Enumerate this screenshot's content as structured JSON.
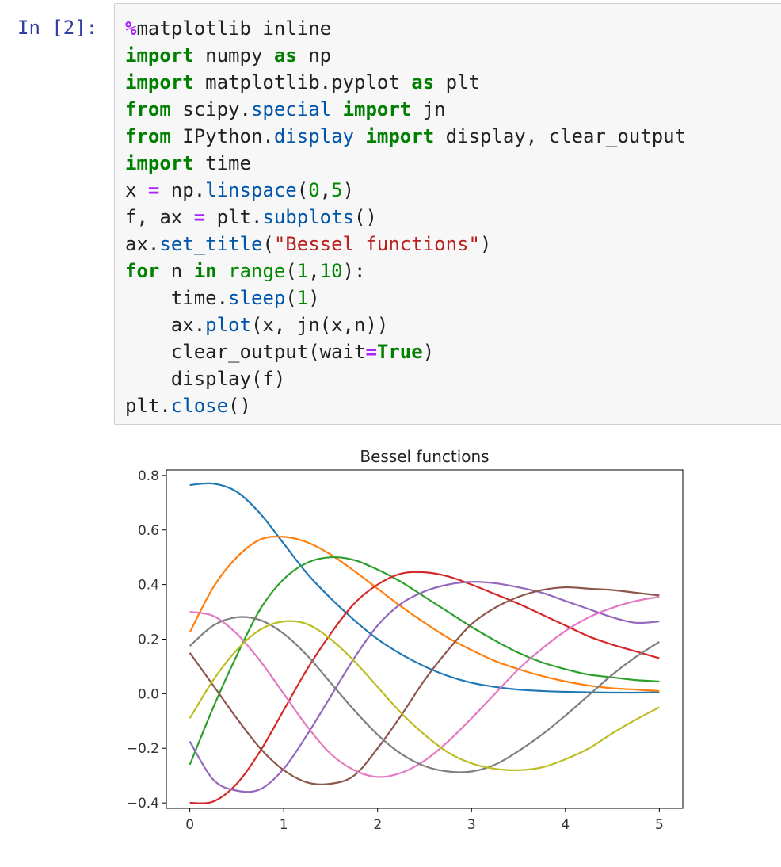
{
  "cell": {
    "prompt": "In [2]:",
    "code_lines": [
      [
        [
          "op",
          "%"
        ],
        [
          "plain",
          "matplotlib inline"
        ]
      ],
      [
        [
          "kw",
          "import"
        ],
        [
          "plain",
          " numpy "
        ],
        [
          "kw",
          "as"
        ],
        [
          "plain",
          " np"
        ]
      ],
      [
        [
          "kw",
          "import"
        ],
        [
          "plain",
          " matplotlib.pyplot "
        ],
        [
          "kw",
          "as"
        ],
        [
          "plain",
          " plt"
        ]
      ],
      [
        [
          "kw",
          "from"
        ],
        [
          "plain",
          " scipy."
        ],
        [
          "nm",
          "special"
        ],
        [
          "plain",
          " "
        ],
        [
          "kw",
          "import"
        ],
        [
          "plain",
          " jn"
        ]
      ],
      [
        [
          "kw",
          "from"
        ],
        [
          "plain",
          " IPython."
        ],
        [
          "nm",
          "display"
        ],
        [
          "plain",
          " "
        ],
        [
          "kw",
          "import"
        ],
        [
          "plain",
          " display, clear_output"
        ]
      ],
      [
        [
          "kw",
          "import"
        ],
        [
          "plain",
          " time"
        ]
      ],
      [
        [
          "plain",
          "x "
        ],
        [
          "op",
          "="
        ],
        [
          "plain",
          " np."
        ],
        [
          "nm",
          "linspace"
        ],
        [
          "plain",
          "("
        ],
        [
          "num",
          "0"
        ],
        [
          "plain",
          ","
        ],
        [
          "num",
          "5"
        ],
        [
          "plain",
          ")"
        ]
      ],
      [
        [
          "plain",
          "f, ax "
        ],
        [
          "op",
          "="
        ],
        [
          "plain",
          " plt."
        ],
        [
          "nm",
          "subplots"
        ],
        [
          "plain",
          "()"
        ]
      ],
      [
        [
          "plain",
          "ax."
        ],
        [
          "nm",
          "set_title"
        ],
        [
          "plain",
          "("
        ],
        [
          "str",
          "\"Bessel functions\""
        ],
        [
          "plain",
          ")"
        ]
      ],
      [
        [
          "kw",
          "for"
        ],
        [
          "plain",
          " n "
        ],
        [
          "kw",
          "in"
        ],
        [
          "plain",
          " "
        ],
        [
          "num",
          "range"
        ],
        [
          "plain",
          "("
        ],
        [
          "num",
          "1"
        ],
        [
          "plain",
          ","
        ],
        [
          "num",
          "10"
        ],
        [
          "plain",
          "):"
        ]
      ],
      [
        [
          "plain",
          "    time."
        ],
        [
          "nm",
          "sleep"
        ],
        [
          "plain",
          "("
        ],
        [
          "num",
          "1"
        ],
        [
          "plain",
          ")"
        ]
      ],
      [
        [
          "plain",
          "    ax."
        ],
        [
          "nm",
          "plot"
        ],
        [
          "plain",
          "(x, jn(x,n))"
        ]
      ],
      [
        [
          "plain",
          "    clear_output(wait"
        ],
        [
          "op",
          "="
        ],
        [
          "kw",
          "True"
        ],
        [
          "plain",
          ")"
        ]
      ],
      [
        [
          "plain",
          "    display(f)"
        ]
      ],
      [
        [
          "plain",
          "plt."
        ],
        [
          "nm",
          "close"
        ],
        [
          "plain",
          "()"
        ]
      ]
    ]
  },
  "chart_data": {
    "type": "line",
    "title": "Bessel functions",
    "xlabel": "",
    "ylabel": "",
    "xlim": [
      -0.25,
      5.25
    ],
    "ylim": [
      -0.42,
      0.82
    ],
    "x_ticks": [
      0,
      1,
      2,
      3,
      4,
      5
    ],
    "x_tick_labels": [
      "0",
      "1",
      "2",
      "3",
      "4",
      "5"
    ],
    "y_ticks": [
      -0.4,
      -0.2,
      0.0,
      0.2,
      0.4,
      0.6,
      0.8
    ],
    "y_tick_labels": [
      "−0.4",
      "−0.2",
      "0.0",
      "0.2",
      "0.4",
      "0.6",
      "0.8"
    ],
    "grid": false,
    "legend": "none",
    "x": [
      0.0,
      0.25,
      0.5,
      0.75,
      1.0,
      1.25,
      1.5,
      1.75,
      2.0,
      2.25,
      2.5,
      2.75,
      3.0,
      3.25,
      3.5,
      3.75,
      4.0,
      4.25,
      4.5,
      4.75,
      5.0
    ],
    "series": [
      {
        "color": "#1f77b4",
        "values": [
          0.765,
          0.77,
          0.74,
          0.66,
          0.55,
          0.44,
          0.35,
          0.27,
          0.2,
          0.145,
          0.1,
          0.065,
          0.04,
          0.025,
          0.015,
          0.01,
          0.007,
          0.005,
          0.004,
          0.004,
          0.005
        ]
      },
      {
        "color": "#ff7f0e",
        "values": [
          0.225,
          0.39,
          0.5,
          0.565,
          0.575,
          0.555,
          0.51,
          0.45,
          0.385,
          0.32,
          0.26,
          0.205,
          0.16,
          0.12,
          0.09,
          0.065,
          0.045,
          0.03,
          0.02,
          0.015,
          0.01
        ]
      },
      {
        "color": "#2ca02c",
        "values": [
          -0.26,
          -0.05,
          0.14,
          0.31,
          0.42,
          0.48,
          0.5,
          0.49,
          0.455,
          0.41,
          0.355,
          0.3,
          0.245,
          0.195,
          0.15,
          0.115,
          0.09,
          0.07,
          0.06,
          0.05,
          0.045
        ]
      },
      {
        "color": "#d62728",
        "values": [
          -0.4,
          -0.395,
          -0.33,
          -0.21,
          -0.06,
          0.09,
          0.22,
          0.33,
          0.4,
          0.44,
          0.445,
          0.43,
          0.4,
          0.365,
          0.33,
          0.29,
          0.25,
          0.21,
          0.18,
          0.155,
          0.13
        ]
      },
      {
        "color": "#9467bd",
        "values": [
          -0.175,
          -0.315,
          -0.355,
          -0.35,
          -0.275,
          -0.15,
          -0.01,
          0.13,
          0.25,
          0.33,
          0.375,
          0.4,
          0.41,
          0.405,
          0.39,
          0.37,
          0.34,
          0.31,
          0.28,
          0.26,
          0.265
        ]
      },
      {
        "color": "#8c564b",
        "values": [
          0.15,
          0.03,
          -0.09,
          -0.2,
          -0.28,
          -0.325,
          -0.33,
          -0.3,
          -0.2,
          -0.08,
          0.05,
          0.16,
          0.255,
          0.315,
          0.355,
          0.38,
          0.39,
          0.385,
          0.38,
          0.37,
          0.36
        ]
      },
      {
        "color": "#e377c2",
        "values": [
          0.3,
          0.285,
          0.22,
          0.12,
          0.0,
          -0.12,
          -0.22,
          -0.28,
          -0.305,
          -0.29,
          -0.245,
          -0.175,
          -0.09,
          0.0,
          0.09,
          0.165,
          0.23,
          0.28,
          0.315,
          0.34,
          0.355
        ]
      },
      {
        "color": "#7f7f7f",
        "values": [
          0.175,
          0.25,
          0.28,
          0.27,
          0.22,
          0.14,
          0.04,
          -0.06,
          -0.15,
          -0.22,
          -0.265,
          -0.285,
          -0.285,
          -0.26,
          -0.21,
          -0.15,
          -0.08,
          -0.005,
          0.07,
          0.135,
          0.19
        ]
      },
      {
        "color": "#bcbd22",
        "values": [
          -0.09,
          0.05,
          0.16,
          0.235,
          0.265,
          0.255,
          0.2,
          0.12,
          0.025,
          -0.07,
          -0.15,
          -0.215,
          -0.255,
          -0.275,
          -0.28,
          -0.27,
          -0.24,
          -0.2,
          -0.145,
          -0.095,
          -0.05
        ]
      }
    ]
  }
}
